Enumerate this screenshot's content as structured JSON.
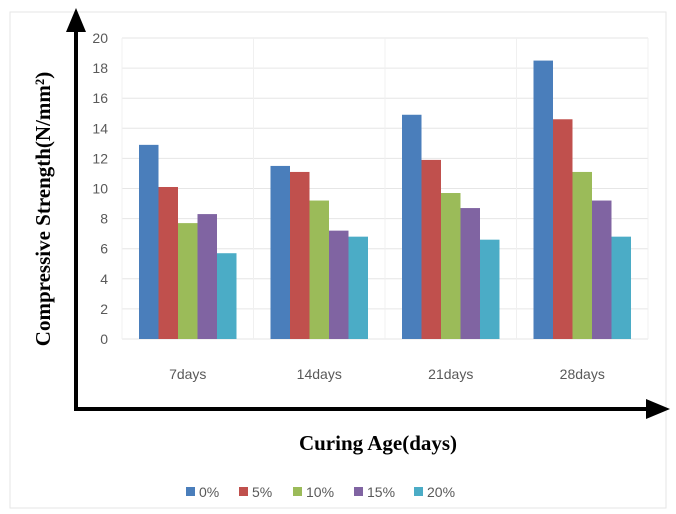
{
  "chart_data": {
    "type": "bar",
    "categories": [
      "7days",
      "14days",
      "21days",
      "28days"
    ],
    "series": [
      {
        "name": "0%",
        "values": [
          12.9,
          11.5,
          14.9,
          18.5
        ]
      },
      {
        "name": "5%",
        "values": [
          10.1,
          11.1,
          11.9,
          14.6
        ]
      },
      {
        "name": "10%",
        "values": [
          7.7,
          9.2,
          9.7,
          11.1
        ]
      },
      {
        "name": "15%",
        "values": [
          8.3,
          7.2,
          8.7,
          9.2
        ]
      },
      {
        "name": "20%",
        "values": [
          5.7,
          6.8,
          6.6,
          6.8
        ]
      }
    ],
    "xlabel": "Curing Age(days)",
    "ylabel": "Compressive Strength(N/mm²)",
    "ylim": [
      0,
      20
    ],
    "yticks": [
      0,
      2,
      4,
      6,
      8,
      10,
      12,
      14,
      16,
      18,
      20
    ],
    "grid": true,
    "legend_position": "bottom",
    "colors": [
      "#4a7ebb",
      "#c0504d",
      "#9bbb59",
      "#8064a2",
      "#4bacc6"
    ]
  }
}
